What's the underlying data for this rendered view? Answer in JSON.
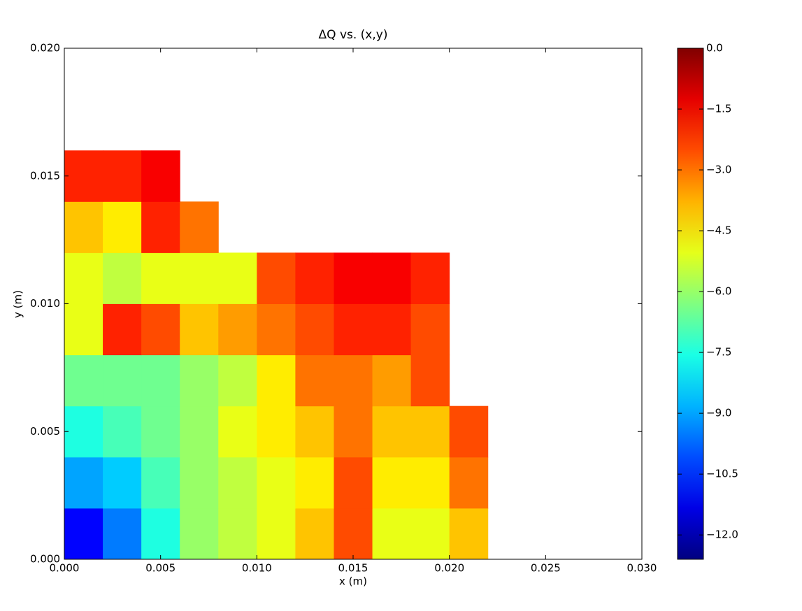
{
  "chart_data": {
    "type": "heatmap",
    "title": "ΔQ vs. (x,y)",
    "xlabel": "x (m)",
    "ylabel": "y (m)",
    "colormap": "jet",
    "xlim": [
      0,
      0.03
    ],
    "ylim": [
      0,
      0.02
    ],
    "xticks": [
      {
        "value": 0,
        "label": "0.000"
      },
      {
        "value": 0.005,
        "label": "0.005"
      },
      {
        "value": 0.01,
        "label": "0.010"
      },
      {
        "value": 0.015,
        "label": "0.015"
      },
      {
        "value": 0.02,
        "label": "0.020"
      },
      {
        "value": 0.025,
        "label": "0.025"
      },
      {
        "value": 0.03,
        "label": "0.030"
      }
    ],
    "yticks": [
      {
        "value": 0,
        "label": "0.000"
      },
      {
        "value": 0.005,
        "label": "0.005"
      },
      {
        "value": 0.01,
        "label": "0.010"
      },
      {
        "value": 0.015,
        "label": "0.015"
      },
      {
        "value": 0.02,
        "label": "0.020"
      }
    ],
    "clim": [
      -12.6,
      0
    ],
    "cticks": [
      {
        "value": 0,
        "label": "0.0"
      },
      {
        "value": -1.5,
        "label": "−1.5"
      },
      {
        "value": -3,
        "label": "−3.0"
      },
      {
        "value": -4.5,
        "label": "−4.5"
      },
      {
        "value": -6,
        "label": "−6.0"
      },
      {
        "value": -7.5,
        "label": "−7.5"
      },
      {
        "value": -9,
        "label": "−9.0"
      },
      {
        "value": -10.5,
        "label": "−10.5"
      },
      {
        "value": -12,
        "label": "−12.0"
      }
    ],
    "xbins": [
      0,
      0.002,
      0.004,
      0.006,
      0.008,
      0.01,
      0.012,
      0.014,
      0.016,
      0.018,
      0.02,
      0.022,
      0.024,
      0.026,
      0.028,
      0.03
    ],
    "ybins": [
      0,
      0.002,
      0.004,
      0.006,
      0.008,
      0.01,
      0.012,
      0.014,
      0.016,
      0.018,
      0.02
    ],
    "z": [
      [
        -11,
        -9.5,
        -7.5,
        -6,
        -5.5,
        -5,
        -4,
        -2.5,
        -5,
        -5,
        -4,
        null,
        null,
        null,
        null
      ],
      [
        -9,
        -8.5,
        -7,
        -6,
        -5.5,
        -5,
        -4.5,
        -2.5,
        -4.5,
        -4.5,
        -3,
        null,
        null,
        null,
        null
      ],
      [
        -7.5,
        -7,
        -6.5,
        -6,
        -5,
        -4.5,
        -4,
        -3,
        -4,
        -4,
        -2.5,
        null,
        null,
        null,
        null
      ],
      [
        -6.5,
        -6.5,
        -6.5,
        -6,
        -5.5,
        -4.5,
        -3,
        -3,
        -3.5,
        -2.5,
        null,
        null,
        null,
        null,
        null
      ],
      [
        -5,
        -2,
        -2.5,
        -4,
        -3.5,
        -3,
        -2.5,
        -2,
        -2,
        -2.5,
        null,
        null,
        null,
        null,
        null
      ],
      [
        -5,
        -5.5,
        -5,
        -5,
        -5,
        -2.5,
        -2,
        -1.5,
        -1.5,
        -2,
        null,
        null,
        null,
        null,
        null
      ],
      [
        -4,
        -4.5,
        -2,
        -3,
        null,
        null,
        null,
        null,
        null,
        null,
        null,
        null,
        null,
        null,
        null
      ],
      [
        -2,
        -2,
        -1.5,
        null,
        null,
        null,
        null,
        null,
        null,
        null,
        null,
        null,
        null,
        null,
        null
      ],
      [
        null,
        null,
        null,
        null,
        null,
        null,
        null,
        null,
        null,
        null,
        null,
        null,
        null,
        null,
        null
      ],
      [
        null,
        null,
        null,
        null,
        null,
        null,
        null,
        null,
        null,
        null,
        null,
        null,
        null,
        null,
        null
      ]
    ]
  }
}
